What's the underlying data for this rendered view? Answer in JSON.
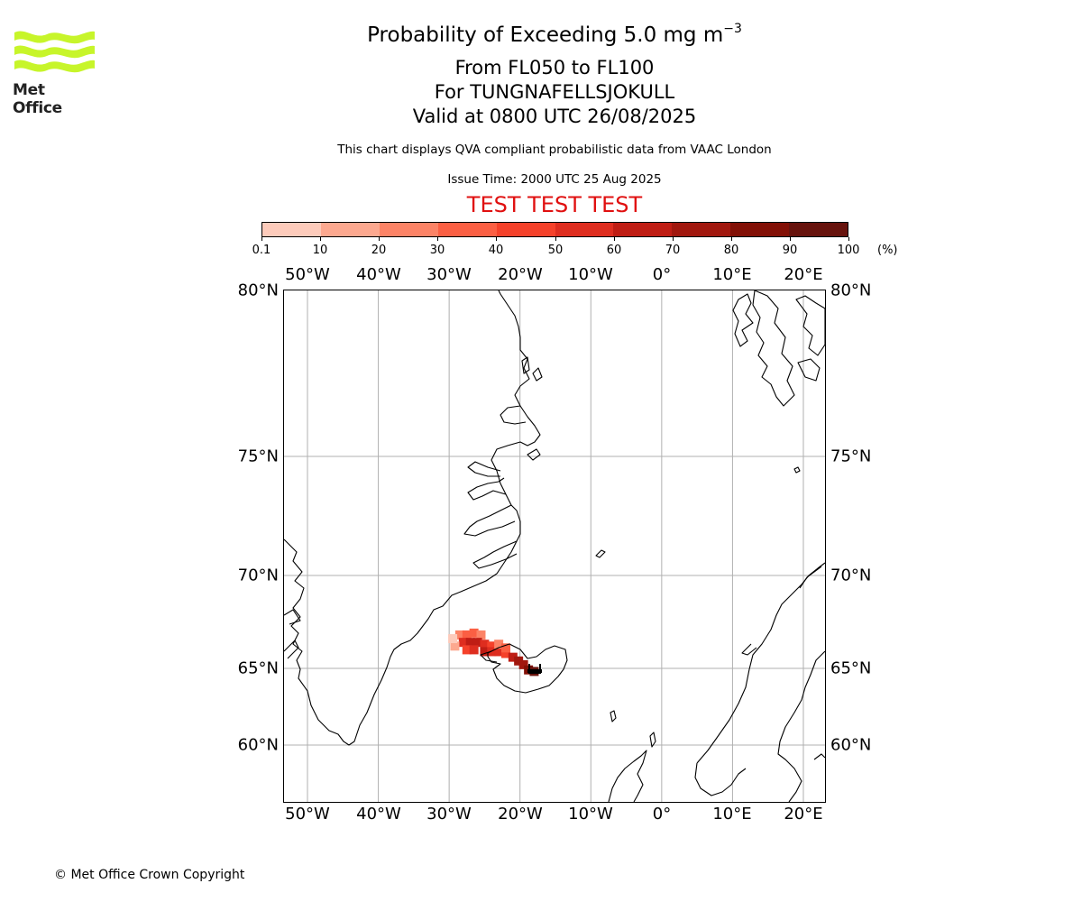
{
  "logo": {
    "text": "Met Office",
    "color": "#c7f52a"
  },
  "title": {
    "line1_prefix": "Probability of Exceeding 5.0 mg m",
    "line1_superscript": "−3",
    "line2": "From FL050 to FL100",
    "line3": "For TUNGNAFELLSJOKULL",
    "line4": "Valid at 0800 UTC 26/08/2025"
  },
  "subtitle": "This chart displays QVA compliant probabilistic data from VAAC London",
  "issue_time": "Issue Time: 2000 UTC 25 Aug 2025",
  "test_banner": "TEST TEST TEST",
  "test_color": "#e01010",
  "colorbar": {
    "ticks": [
      "0.1",
      "10",
      "20",
      "30",
      "40",
      "50",
      "60",
      "70",
      "80",
      "90",
      "100"
    ],
    "unit": "(%)",
    "colors": [
      "#fff0eb",
      "#fdcbbb",
      "#fca88f",
      "#fc8366",
      "#fb5f43",
      "#f5412a",
      "#de2d1f",
      "#bf1d14",
      "#a1170e",
      "#821006",
      "#67130d"
    ]
  },
  "map": {
    "lon_labels": [
      "50°W",
      "40°W",
      "30°W",
      "20°W",
      "10°W",
      "0°",
      "10°E",
      "20°E"
    ],
    "lat_labels": [
      "80°N",
      "75°N",
      "70°N",
      "65°N",
      "60°N"
    ],
    "volcano": "TUNGNAFELLSJOKULL",
    "plume_cells": [
      {
        "lon": -28.5,
        "lat": 66.8,
        "p": 20
      },
      {
        "lon": -27.5,
        "lat": 66.8,
        "p": 35
      },
      {
        "lon": -26.5,
        "lat": 66.9,
        "p": 30
      },
      {
        "lon": -25.5,
        "lat": 66.8,
        "p": 25
      },
      {
        "lon": -28.0,
        "lat": 66.4,
        "p": 55
      },
      {
        "lon": -27.0,
        "lat": 66.4,
        "p": 65
      },
      {
        "lon": -26.0,
        "lat": 66.4,
        "p": 60
      },
      {
        "lon": -25.0,
        "lat": 66.3,
        "p": 55
      },
      {
        "lon": -24.0,
        "lat": 66.2,
        "p": 45
      },
      {
        "lon": -27.5,
        "lat": 66.0,
        "p": 45
      },
      {
        "lon": -26.5,
        "lat": 66.0,
        "p": 50
      },
      {
        "lon": -25.0,
        "lat": 65.9,
        "p": 60
      },
      {
        "lon": -24.0,
        "lat": 65.9,
        "p": 55
      },
      {
        "lon": -23.0,
        "lat": 65.9,
        "p": 50
      },
      {
        "lon": -22.0,
        "lat": 65.8,
        "p": 45
      },
      {
        "lon": -21.0,
        "lat": 65.6,
        "p": 60
      },
      {
        "lon": -20.2,
        "lat": 65.4,
        "p": 70
      },
      {
        "lon": -19.5,
        "lat": 65.2,
        "p": 75
      },
      {
        "lon": -18.8,
        "lat": 64.9,
        "p": 85
      },
      {
        "lon": -18.0,
        "lat": 64.8,
        "p": 90
      },
      {
        "lon": -29.2,
        "lat": 66.2,
        "p": 10
      },
      {
        "lon": -29.5,
        "lat": 66.6,
        "p": 5
      },
      {
        "lon": -23.0,
        "lat": 66.3,
        "p": 25
      },
      {
        "lon": -22.0,
        "lat": 66.1,
        "p": 30
      }
    ]
  },
  "copyright": "© Met Office Crown Copyright"
}
